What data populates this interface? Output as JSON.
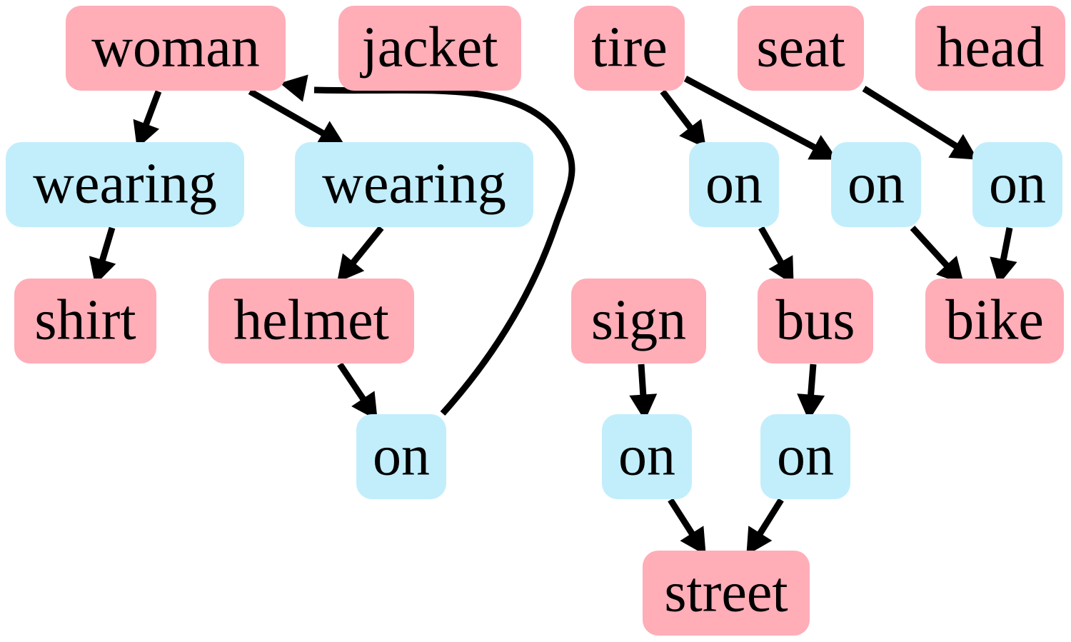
{
  "colors": {
    "object": "#ffadb7",
    "relation": "#c2eefc",
    "edge": "#000000"
  },
  "nodes": [
    {
      "id": "woman",
      "label": "woman",
      "kind": "object"
    },
    {
      "id": "jacket",
      "label": "jacket",
      "kind": "object"
    },
    {
      "id": "tire",
      "label": "tire",
      "kind": "object"
    },
    {
      "id": "seat",
      "label": "seat",
      "kind": "object"
    },
    {
      "id": "head",
      "label": "head",
      "kind": "object"
    },
    {
      "id": "wearing1",
      "label": "wearing",
      "kind": "relation"
    },
    {
      "id": "wearing2",
      "label": "wearing",
      "kind": "relation"
    },
    {
      "id": "on_tire_bus",
      "label": "on",
      "kind": "relation"
    },
    {
      "id": "on_tire_bike",
      "label": "on",
      "kind": "relation"
    },
    {
      "id": "on_head_bike",
      "label": "on",
      "kind": "relation"
    },
    {
      "id": "shirt",
      "label": "shirt",
      "kind": "object"
    },
    {
      "id": "helmet",
      "label": "helmet",
      "kind": "object"
    },
    {
      "id": "sign",
      "label": "sign",
      "kind": "object"
    },
    {
      "id": "bus",
      "label": "bus",
      "kind": "object"
    },
    {
      "id": "bike",
      "label": "bike",
      "kind": "object"
    },
    {
      "id": "on_helmet_woman",
      "label": "on",
      "kind": "relation"
    },
    {
      "id": "on_sign_street",
      "label": "on",
      "kind": "relation"
    },
    {
      "id": "on_bus_street",
      "label": "on",
      "kind": "relation"
    },
    {
      "id": "street",
      "label": "street",
      "kind": "object"
    }
  ],
  "edges": [
    {
      "from": "woman",
      "to": "wearing1"
    },
    {
      "from": "woman",
      "to": "wearing2"
    },
    {
      "from": "wearing1",
      "to": "shirt"
    },
    {
      "from": "wearing2",
      "to": "helmet"
    },
    {
      "from": "helmet",
      "to": "on_helmet_woman"
    },
    {
      "from": "on_helmet_woman",
      "to": "woman"
    },
    {
      "from": "tire",
      "to": "on_tire_bus"
    },
    {
      "from": "tire",
      "to": "on_tire_bike"
    },
    {
      "from": "head",
      "to": "on_head_bike"
    },
    {
      "from": "on_tire_bus",
      "to": "bus"
    },
    {
      "from": "on_tire_bike",
      "to": "bike"
    },
    {
      "from": "on_head_bike",
      "to": "bike"
    },
    {
      "from": "sign",
      "to": "on_sign_street"
    },
    {
      "from": "bus",
      "to": "on_bus_street"
    },
    {
      "from": "on_sign_street",
      "to": "street"
    },
    {
      "from": "on_bus_street",
      "to": "street"
    }
  ]
}
